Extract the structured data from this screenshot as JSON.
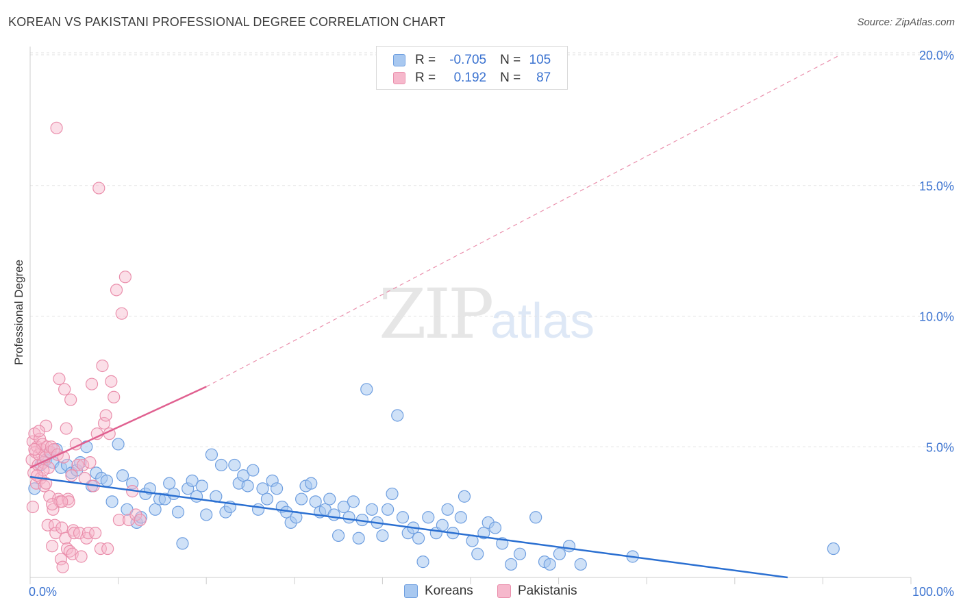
{
  "header": {
    "title": "KOREAN VS PAKISTANI PROFESSIONAL DEGREE CORRELATION CHART",
    "source": "Source: ZipAtlas.com"
  },
  "watermark": {
    "zip": "ZIP",
    "atlas": "atlas"
  },
  "colors": {
    "korean_fill": "#a8c8f0",
    "korean_stroke": "#6f9fe0",
    "korean_line": "#2a6fd1",
    "pakistani_fill": "#f6b8cc",
    "pakistani_stroke": "#ea8fac",
    "pakistani_line": "#e06090",
    "axis_text": "#3a72d0",
    "grid": "#e2e2e2"
  },
  "legend": {
    "rows": [
      {
        "r_label": "R =",
        "r_value": "-0.705",
        "n_label": "N =",
        "n_value": "105"
      },
      {
        "r_label": "R =",
        "r_value": "0.192",
        "n_label": "N =",
        "n_value": "87"
      }
    ]
  },
  "bottom_legend": {
    "koreans": "Koreans",
    "pakistanis": "Pakistanis"
  },
  "chart_data": {
    "type": "scatter",
    "title": "KOREAN VS PAKISTANI PROFESSIONAL DEGREE CORRELATION CHART",
    "xlabel": "",
    "ylabel": "Professional Degree",
    "xlim": [
      0,
      100
    ],
    "ylim": [
      0,
      20
    ],
    "x_tick_labels": [
      "0.0%",
      "100.0%"
    ],
    "y_tick_labels": [
      "20.0%",
      "15.0%",
      "10.0%",
      "5.0%"
    ],
    "y_ticks": [
      20,
      15,
      10,
      5
    ],
    "series": [
      {
        "name": "Koreans",
        "r": -0.705,
        "n": 105,
        "trendline": {
          "x": [
            0,
            86
          ],
          "y": [
            3.85,
            0.0
          ]
        },
        "points": [
          [
            0.5,
            3.4
          ],
          [
            1.2,
            4.3
          ],
          [
            1.8,
            4.5
          ],
          [
            2.2,
            4.8
          ],
          [
            2.6,
            4.4
          ],
          [
            3.0,
            4.9
          ],
          [
            3.5,
            4.2
          ],
          [
            4.2,
            4.3
          ],
          [
            4.7,
            4.0
          ],
          [
            5.3,
            4.1
          ],
          [
            5.7,
            4.4
          ],
          [
            6.4,
            5.0
          ],
          [
            7.0,
            3.5
          ],
          [
            7.5,
            4.0
          ],
          [
            8.1,
            3.8
          ],
          [
            8.7,
            3.7
          ],
          [
            9.3,
            2.9
          ],
          [
            10.0,
            5.1
          ],
          [
            10.5,
            3.9
          ],
          [
            11.0,
            2.6
          ],
          [
            11.6,
            3.6
          ],
          [
            12.1,
            2.1
          ],
          [
            12.6,
            2.3
          ],
          [
            13.1,
            3.2
          ],
          [
            13.6,
            3.4
          ],
          [
            14.2,
            2.6
          ],
          [
            14.7,
            3.0
          ],
          [
            15.3,
            3.0
          ],
          [
            15.8,
            3.6
          ],
          [
            16.3,
            3.2
          ],
          [
            16.8,
            2.5
          ],
          [
            17.3,
            1.3
          ],
          [
            17.9,
            3.4
          ],
          [
            18.4,
            3.7
          ],
          [
            18.9,
            3.1
          ],
          [
            19.5,
            3.5
          ],
          [
            20.0,
            2.4
          ],
          [
            20.6,
            4.7
          ],
          [
            21.1,
            3.1
          ],
          [
            21.7,
            4.3
          ],
          [
            22.2,
            2.5
          ],
          [
            22.7,
            2.7
          ],
          [
            23.2,
            4.3
          ],
          [
            23.7,
            3.6
          ],
          [
            24.2,
            3.9
          ],
          [
            24.7,
            3.5
          ],
          [
            25.3,
            4.1
          ],
          [
            25.9,
            2.6
          ],
          [
            26.4,
            3.4
          ],
          [
            26.9,
            3.0
          ],
          [
            27.5,
            3.7
          ],
          [
            28.0,
            3.4
          ],
          [
            28.6,
            2.7
          ],
          [
            29.1,
            2.5
          ],
          [
            29.6,
            2.1
          ],
          [
            30.2,
            2.3
          ],
          [
            30.8,
            3.0
          ],
          [
            31.3,
            3.5
          ],
          [
            31.9,
            3.6
          ],
          [
            32.4,
            2.9
          ],
          [
            32.9,
            2.5
          ],
          [
            33.5,
            2.6
          ],
          [
            34.0,
            3.0
          ],
          [
            34.5,
            2.4
          ],
          [
            35.0,
            1.6
          ],
          [
            35.6,
            2.7
          ],
          [
            36.2,
            2.3
          ],
          [
            36.7,
            2.9
          ],
          [
            37.3,
            1.5
          ],
          [
            37.7,
            2.2
          ],
          [
            38.2,
            7.2
          ],
          [
            38.8,
            2.6
          ],
          [
            39.4,
            2.1
          ],
          [
            40.0,
            1.6
          ],
          [
            40.6,
            2.6
          ],
          [
            41.1,
            3.2
          ],
          [
            41.7,
            6.2
          ],
          [
            42.3,
            2.3
          ],
          [
            42.9,
            1.7
          ],
          [
            43.5,
            1.9
          ],
          [
            44.1,
            1.5
          ],
          [
            44.6,
            0.6
          ],
          [
            45.2,
            2.3
          ],
          [
            46.1,
            1.7
          ],
          [
            46.8,
            2.0
          ],
          [
            47.4,
            2.6
          ],
          [
            48.0,
            1.7
          ],
          [
            48.9,
            2.3
          ],
          [
            49.3,
            3.1
          ],
          [
            50.2,
            1.4
          ],
          [
            50.8,
            0.9
          ],
          [
            51.5,
            1.7
          ],
          [
            52.0,
            2.1
          ],
          [
            52.8,
            1.9
          ],
          [
            53.6,
            1.3
          ],
          [
            54.6,
            0.5
          ],
          [
            55.6,
            0.9
          ],
          [
            57.4,
            2.3
          ],
          [
            58.4,
            0.6
          ],
          [
            59.0,
            0.5
          ],
          [
            60.1,
            0.9
          ],
          [
            61.2,
            1.2
          ],
          [
            62.5,
            0.5
          ],
          [
            68.4,
            0.8
          ],
          [
            91.2,
            1.1
          ]
        ]
      },
      {
        "name": "Pakistanis",
        "r": 0.192,
        "n": 87,
        "trendline": {
          "x": [
            0,
            20
          ],
          "y": [
            4.2,
            7.3
          ]
        },
        "trendline_extended": {
          "x": [
            20,
            92
          ],
          "y": [
            7.3,
            20.0
          ]
        },
        "points": [
          [
            0.2,
            4.5
          ],
          [
            0.3,
            5.2
          ],
          [
            0.4,
            4.0
          ],
          [
            0.5,
            5.5
          ],
          [
            0.6,
            4.8
          ],
          [
            0.7,
            3.6
          ],
          [
            0.8,
            5.0
          ],
          [
            0.9,
            4.3
          ],
          [
            1.0,
            4.7
          ],
          [
            1.1,
            5.3
          ],
          [
            1.2,
            3.8
          ],
          [
            1.3,
            4.9
          ],
          [
            1.4,
            5.1
          ],
          [
            1.5,
            4.4
          ],
          [
            1.6,
            3.5
          ],
          [
            1.7,
            4.6
          ],
          [
            1.8,
            5.8
          ],
          [
            1.9,
            5.0
          ],
          [
            2.0,
            2.0
          ],
          [
            2.1,
            4.2
          ],
          [
            2.2,
            3.1
          ],
          [
            2.3,
            4.8
          ],
          [
            2.4,
            5.0
          ],
          [
            2.5,
            1.2
          ],
          [
            2.6,
            2.6
          ],
          [
            2.7,
            4.9
          ],
          [
            2.8,
            2.0
          ],
          [
            2.9,
            1.7
          ],
          [
            3.0,
            17.2
          ],
          [
            3.1,
            4.7
          ],
          [
            3.2,
            3.0
          ],
          [
            3.3,
            7.6
          ],
          [
            3.4,
            2.9
          ],
          [
            3.5,
            0.7
          ],
          [
            3.6,
            1.9
          ],
          [
            3.7,
            0.4
          ],
          [
            3.8,
            4.6
          ],
          [
            3.9,
            7.2
          ],
          [
            4.0,
            1.5
          ],
          [
            4.1,
            5.7
          ],
          [
            4.2,
            1.1
          ],
          [
            4.3,
            3.0
          ],
          [
            4.4,
            2.9
          ],
          [
            4.5,
            1.0
          ],
          [
            4.6,
            6.8
          ],
          [
            4.7,
            3.9
          ],
          [
            4.8,
            0.9
          ],
          [
            4.9,
            1.8
          ],
          [
            5.0,
            1.7
          ],
          [
            5.2,
            5.1
          ],
          [
            5.4,
            4.3
          ],
          [
            5.6,
            1.7
          ],
          [
            5.8,
            0.8
          ],
          [
            6.0,
            4.3
          ],
          [
            6.2,
            3.8
          ],
          [
            6.4,
            1.5
          ],
          [
            6.6,
            1.7
          ],
          [
            6.8,
            4.4
          ],
          [
            7.0,
            7.4
          ],
          [
            7.2,
            3.5
          ],
          [
            7.4,
            1.7
          ],
          [
            7.6,
            5.5
          ],
          [
            7.8,
            14.9
          ],
          [
            8.0,
            1.1
          ],
          [
            8.2,
            8.1
          ],
          [
            8.4,
            5.9
          ],
          [
            8.6,
            6.2
          ],
          [
            8.8,
            1.1
          ],
          [
            9.0,
            5.5
          ],
          [
            9.2,
            7.5
          ],
          [
            9.5,
            6.9
          ],
          [
            9.8,
            11.0
          ],
          [
            10.1,
            2.2
          ],
          [
            10.4,
            10.1
          ],
          [
            10.8,
            11.5
          ],
          [
            11.2,
            2.2
          ],
          [
            11.6,
            3.3
          ],
          [
            12.0,
            2.4
          ],
          [
            12.5,
            2.2
          ],
          [
            1.0,
            5.6
          ],
          [
            0.5,
            4.9
          ],
          [
            1.5,
            4.1
          ],
          [
            2.5,
            2.8
          ],
          [
            0.8,
            3.9
          ],
          [
            1.8,
            3.6
          ],
          [
            3.6,
            2.9
          ],
          [
            0.3,
            2.7
          ]
        ]
      }
    ]
  }
}
